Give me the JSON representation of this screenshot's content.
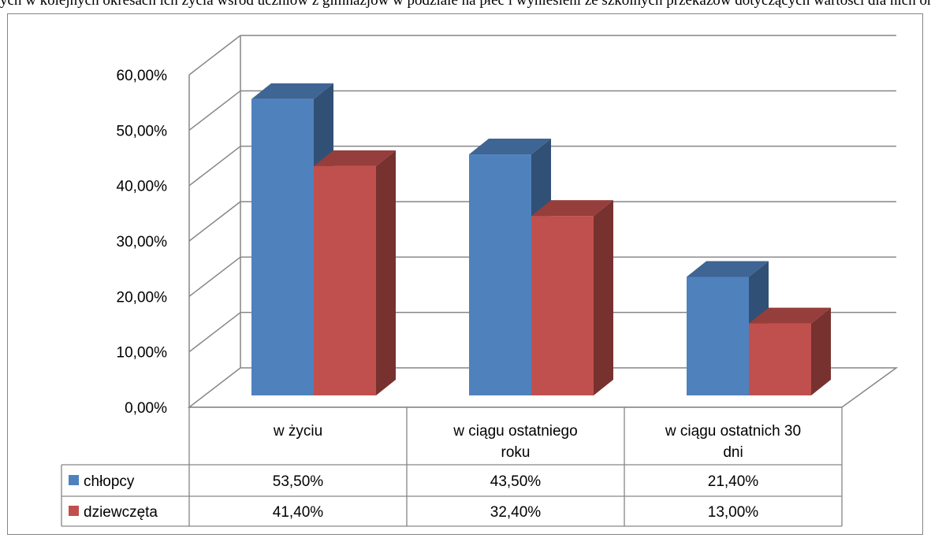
{
  "top_text": "ych w kolejnych okresach ich życia wśród uczniów z gimnazjów w podziale na płeć i wyniesieni ze szkolnych przekazów dotyczących wartości dla nich oraz związanych z czynnikami chroniącymi i czynnikami ryzyka",
  "chart_data": {
    "type": "bar",
    "categories": [
      [
        "w życiu"
      ],
      [
        "w ciągu ostatniego",
        "roku"
      ],
      [
        "w ciągu ostatnich 30",
        "dni"
      ]
    ],
    "series": [
      {
        "name": "chłopcy",
        "values": [
          53.5,
          43.5,
          21.4
        ],
        "labels": [
          "53,50%",
          "43,50%",
          "21,40%"
        ],
        "color": "#4F81BD"
      },
      {
        "name": "dziewczęta",
        "values": [
          41.4,
          32.4,
          13.0
        ],
        "labels": [
          "41,40%",
          "32,40%",
          "13,00%"
        ],
        "color": "#C0504D"
      }
    ],
    "y_ticks": [
      "0,00%",
      "10,00%",
      "20,00%",
      "30,00%",
      "40,00%",
      "50,00%",
      "60,00%"
    ],
    "ylim": [
      0,
      60
    ],
    "grid": true,
    "legend": "data table",
    "style": "3d-clustered-column"
  }
}
